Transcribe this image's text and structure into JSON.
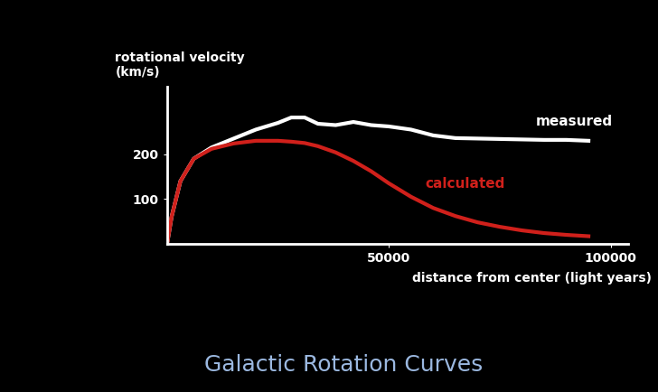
{
  "chart_data": {
    "type": "line",
    "title": "Galactic Rotation Curves",
    "x_label": "distance from center (light years)",
    "y_label": "rotational velocity\n(km/s)",
    "x": [
      0,
      1000,
      3000,
      6000,
      10000,
      15000,
      20000,
      25000,
      28000,
      31000,
      34000,
      38000,
      42000,
      46000,
      50000,
      55000,
      60000,
      65000,
      70000,
      75000,
      80000,
      85000,
      90000,
      95000
    ],
    "series": [
      {
        "name": "measured",
        "color": "#ffffff",
        "values": [
          0,
          60,
          140,
          190,
          215,
          235,
          255,
          270,
          282,
          282,
          268,
          265,
          272,
          265,
          262,
          255,
          242,
          236,
          235,
          234,
          233,
          232,
          232,
          230
        ]
      },
      {
        "name": "calculated",
        "color": "#d0201b",
        "values": [
          0,
          60,
          140,
          190,
          212,
          224,
          230,
          230,
          228,
          225,
          218,
          204,
          185,
          162,
          135,
          105,
          80,
          62,
          48,
          38,
          30,
          24,
          20,
          17
        ]
      }
    ],
    "xlim": [
      0,
      104000
    ],
    "ylim": [
      0,
      350
    ],
    "xticks": [
      50000,
      100000
    ],
    "yticks": [
      100,
      200
    ],
    "grid": false
  }
}
